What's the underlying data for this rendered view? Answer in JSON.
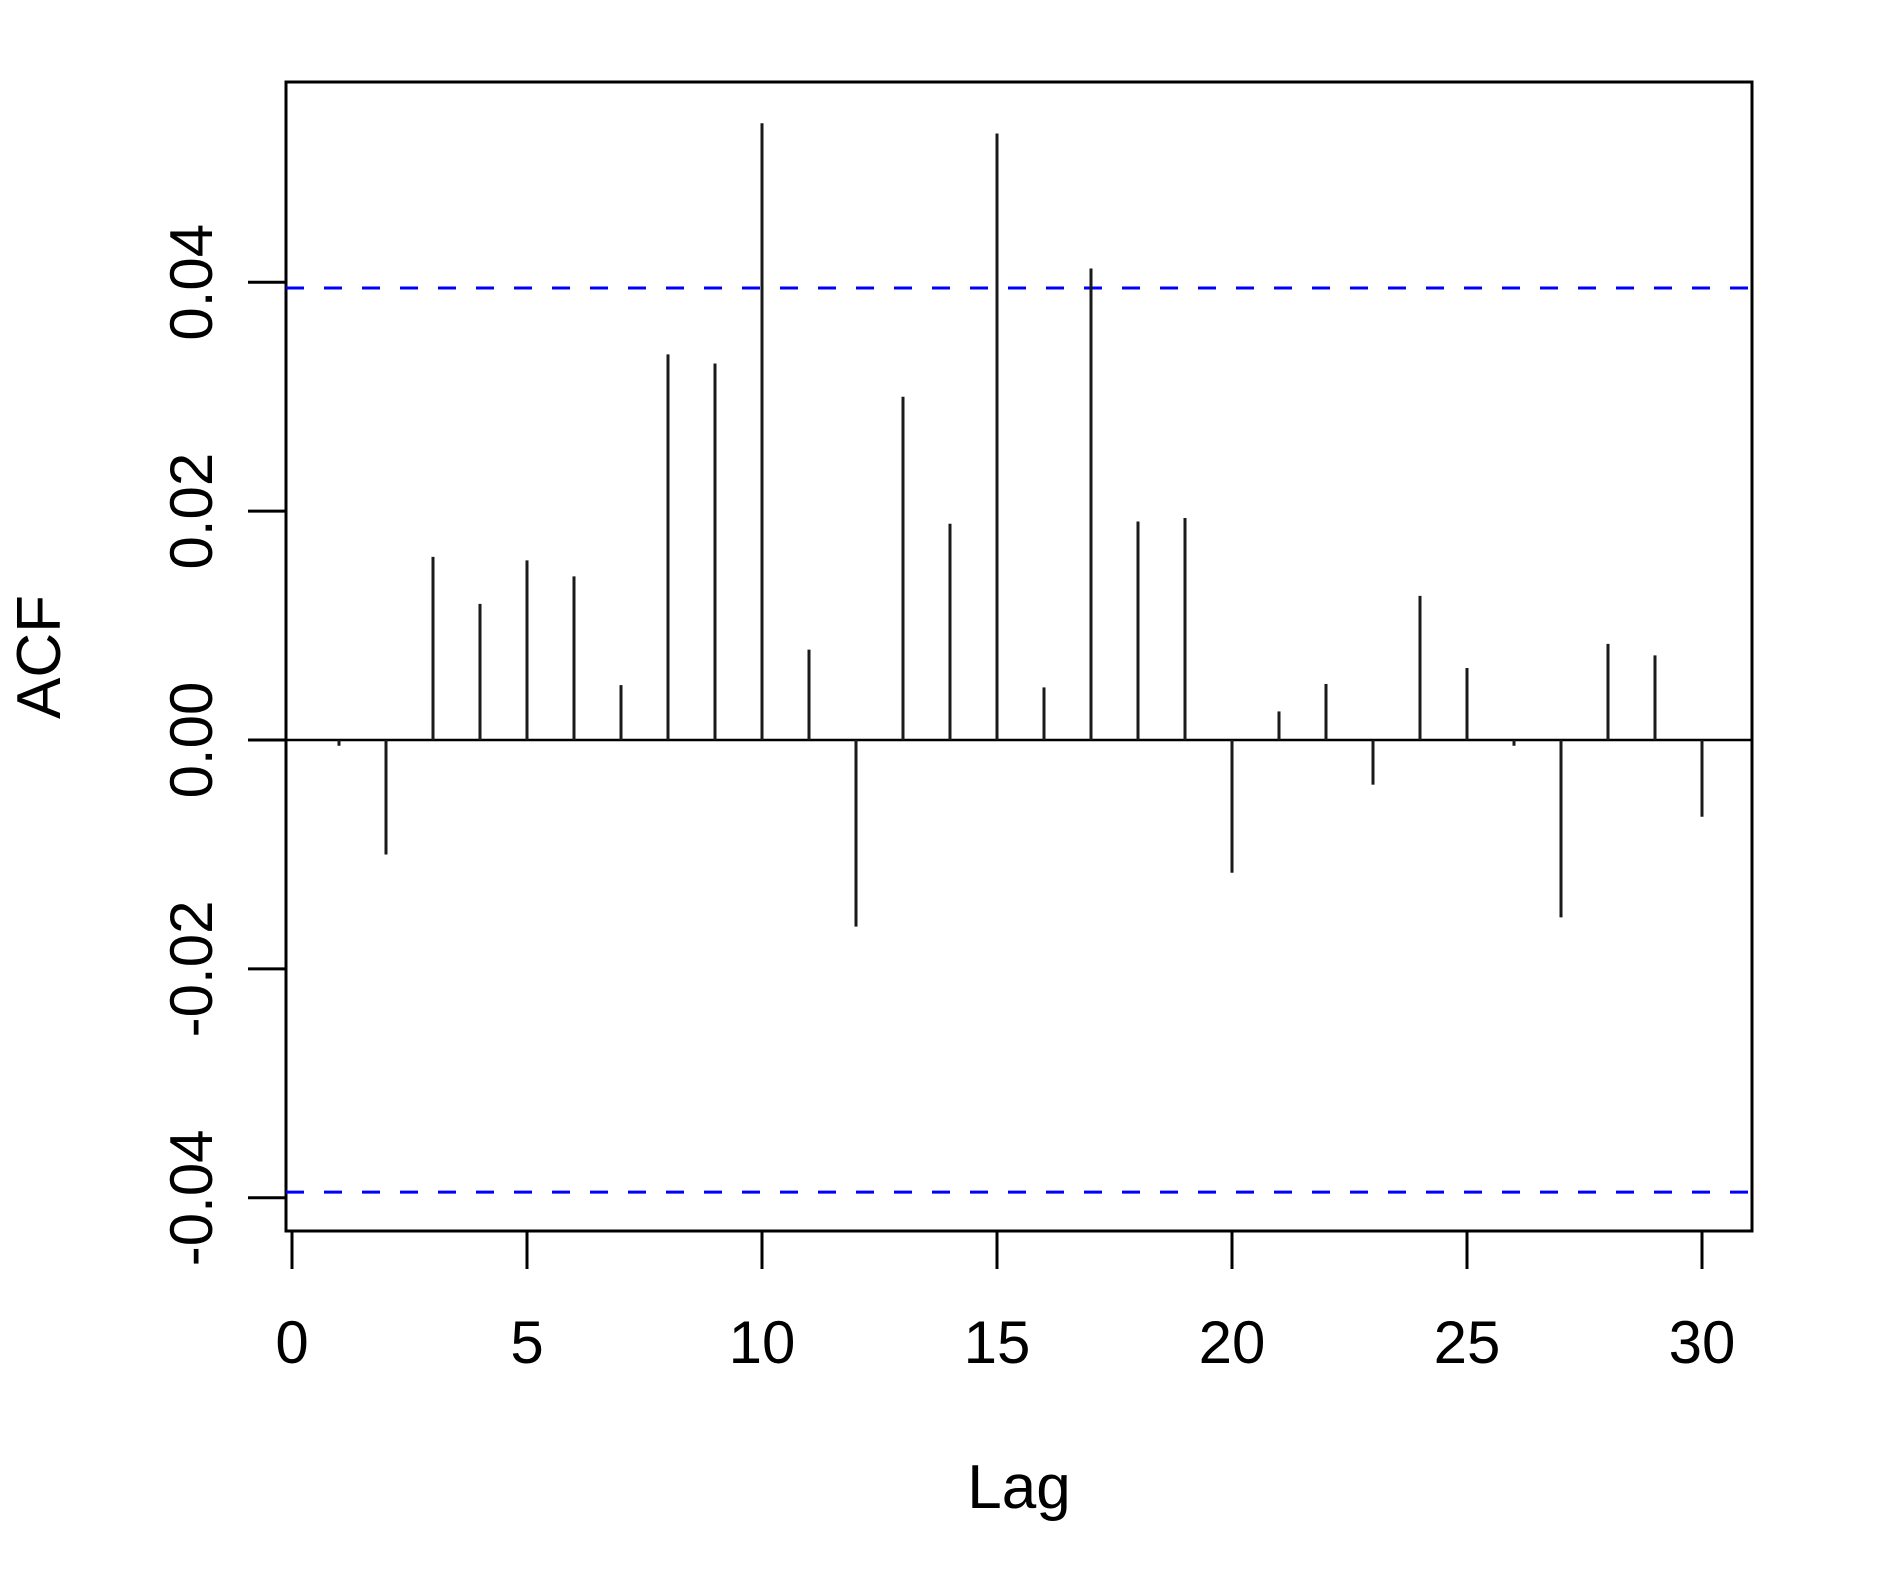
{
  "figure": {
    "background": "#ffffff",
    "colors": {
      "bar": "#1a1a1a",
      "axis": "#000000",
      "zero_line": "#000000",
      "ci_line": "#0000ff",
      "text": "#000000"
    },
    "y_axis": {
      "title": "ACF",
      "tick_labels": [
        "0.04",
        "0.02",
        "0.00",
        "-0.02",
        "-0.04"
      ],
      "tick_values": [
        0.04,
        0.02,
        0.0,
        -0.02,
        -0.04
      ]
    },
    "x_axis": {
      "title": "Lag",
      "tick_labels": [
        "0",
        "5",
        "10",
        "15",
        "20",
        "25",
        "30"
      ],
      "tick_values": [
        0,
        5,
        10,
        15,
        20,
        25,
        30
      ]
    }
  },
  "chart_data": {
    "type": "bar",
    "subtype": "acf-stem-plot",
    "title": "",
    "xlabel": "Lag",
    "ylabel": "ACF",
    "x": [
      1,
      2,
      3,
      4,
      5,
      6,
      7,
      8,
      9,
      10,
      11,
      12,
      13,
      14,
      15,
      16,
      17,
      18,
      19,
      20,
      21,
      22,
      23,
      24,
      25,
      26,
      27,
      28,
      29,
      30
    ],
    "values": [
      -0.0005,
      -0.01,
      0.016,
      0.0119,
      0.0157,
      0.0143,
      0.0048,
      0.0337,
      0.0329,
      0.0539,
      0.0079,
      -0.0163,
      0.03,
      0.0189,
      0.053,
      0.0046,
      0.0412,
      0.0191,
      0.0194,
      -0.0116,
      0.0025,
      0.0049,
      -0.0039,
      0.0126,
      0.0063,
      -0.0005,
      -0.0155,
      0.0084,
      0.0074,
      -0.0067
    ],
    "confidence_interval": 0.0395,
    "ci_style": "dashed",
    "baseline": 0,
    "xlim": [
      0,
      31.1
    ],
    "ylim": [
      -0.0429,
      0.0575
    ],
    "grid": false,
    "legend": null
  }
}
